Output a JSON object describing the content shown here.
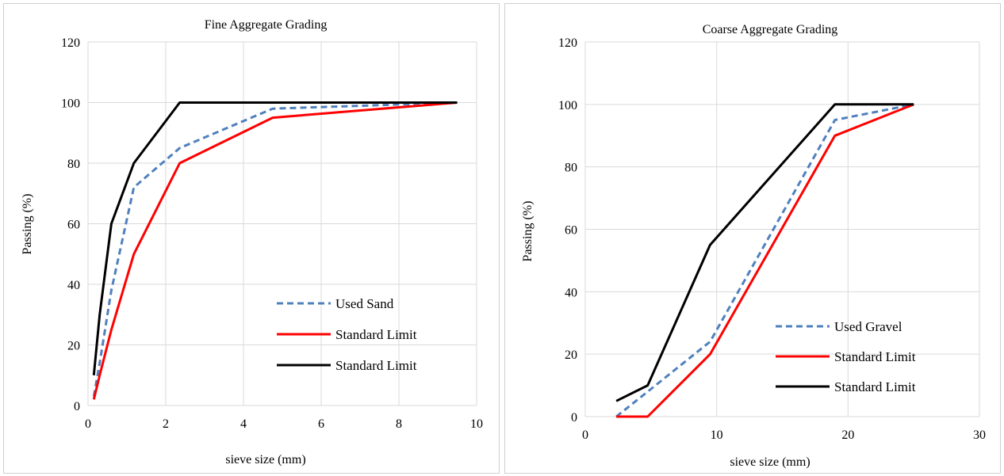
{
  "chart_data": [
    {
      "type": "line",
      "title": "Fine Aggregate Grading",
      "xlabel": "sieve size (mm)",
      "ylabel": "Passing (%)",
      "xlim": [
        0,
        10
      ],
      "ylim": [
        0,
        120
      ],
      "xticks": [
        0,
        2,
        4,
        6,
        8,
        10
      ],
      "yticks": [
        0,
        20,
        40,
        60,
        80,
        100,
        120
      ],
      "grid": true,
      "legend_position": "bottom-right",
      "series": [
        {
          "name": "Used Sand",
          "color": "#4f81bd",
          "dash": "dashed",
          "x": [
            0.15,
            0.3,
            0.6,
            1.18,
            2.36,
            4.75,
            9.5
          ],
          "y": [
            3,
            14,
            38,
            72,
            85,
            98,
            100
          ]
        },
        {
          "name": "Standard Limit",
          "color": "#ff0000",
          "dash": "solid",
          "x": [
            0.15,
            0.3,
            0.6,
            1.18,
            2.36,
            4.75,
            9.5
          ],
          "y": [
            2,
            10,
            25,
            50,
            80,
            95,
            100
          ]
        },
        {
          "name": "Standard Limit",
          "color": "#000000",
          "dash": "solid",
          "x": [
            0.15,
            0.3,
            0.6,
            1.18,
            2.36,
            4.75,
            9.5
          ],
          "y": [
            10,
            30,
            60,
            80,
            100,
            100,
            100
          ]
        }
      ]
    },
    {
      "type": "line",
      "title": "Coarse Aggregate Grading",
      "xlabel": "sieve size (mm)",
      "ylabel": "Passing (%)",
      "xlim": [
        0,
        30
      ],
      "ylim": [
        0,
        120
      ],
      "xticks": [
        0,
        10,
        20,
        30
      ],
      "yticks": [
        0,
        20,
        40,
        60,
        80,
        100,
        120
      ],
      "grid": true,
      "legend_position": "bottom-right",
      "series": [
        {
          "name": "Used Gravel",
          "color": "#4f81bd",
          "dash": "dashed",
          "x": [
            2.36,
            4.75,
            9.5,
            19,
            25
          ],
          "y": [
            0,
            8,
            24,
            95,
            100
          ]
        },
        {
          "name": "Standard Limit",
          "color": "#ff0000",
          "dash": "solid",
          "x": [
            2.36,
            4.75,
            9.5,
            19,
            25
          ],
          "y": [
            0,
            0,
            20,
            90,
            100
          ]
        },
        {
          "name": "Standard Limit",
          "color": "#000000",
          "dash": "solid",
          "x": [
            2.36,
            4.75,
            9.5,
            19,
            25
          ],
          "y": [
            5,
            10,
            55,
            100,
            100
          ]
        }
      ]
    }
  ]
}
